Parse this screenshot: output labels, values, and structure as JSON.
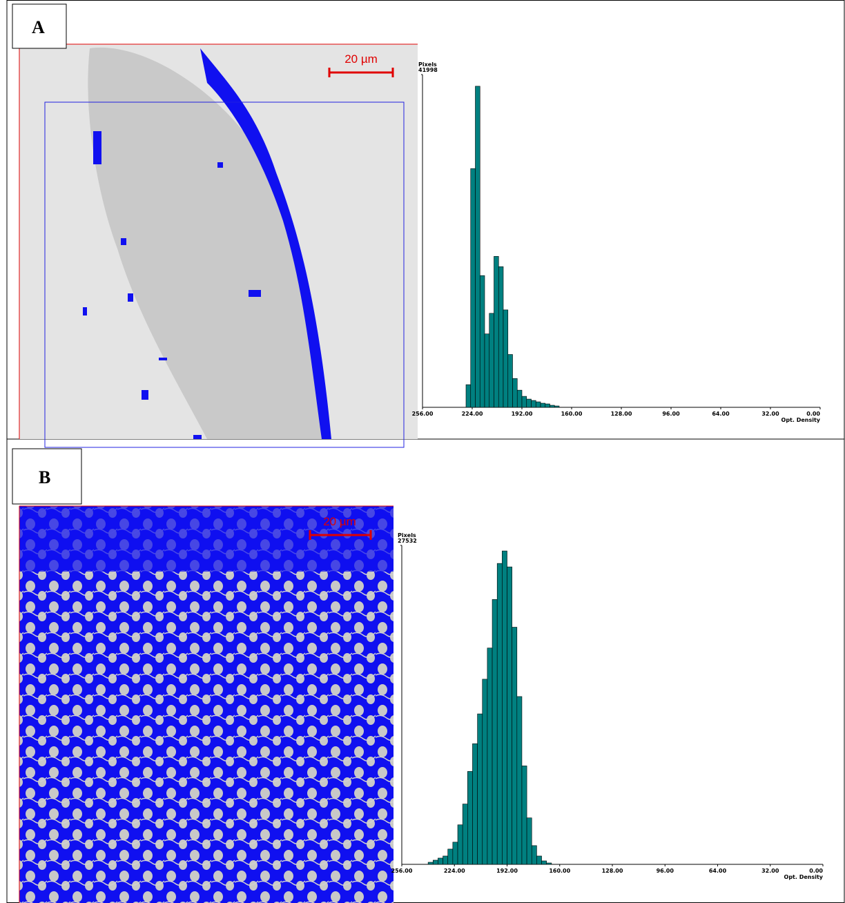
{
  "panels": [
    {
      "label": "A",
      "scale_bar": "20 µm"
    },
    {
      "label": "B",
      "scale_bar": "20 µm"
    }
  ],
  "chart_data": [
    {
      "type": "histogram",
      "y_label": "Pixels",
      "x_label": "Opt. Density",
      "color": "#008080",
      "bins": [
        228,
        225,
        222,
        219,
        216,
        213,
        210,
        207,
        204,
        201,
        198,
        195,
        192,
        189,
        186,
        183,
        180,
        177,
        174,
        171,
        168
      ],
      "values": [
        2858,
        30134,
        40526,
        16626,
        9266,
        11863,
        19051,
        17752,
        12296,
        6668,
        3637,
        2165,
        1386,
        1039,
        866,
        693,
        520,
        433,
        260,
        173
      ],
      "xlim": [
        256,
        0
      ],
      "xticks": [
        {
          "value": 256,
          "label": "256.00"
        },
        {
          "value": 224,
          "label": "224.00"
        },
        {
          "value": 192,
          "label": "192.00"
        },
        {
          "value": 160,
          "label": "160.00"
        },
        {
          "value": 128,
          "label": "128.00"
        },
        {
          "value": 96,
          "label": "96.00"
        },
        {
          "value": 64,
          "label": "64.00"
        },
        {
          "value": 32,
          "label": "32.00"
        },
        {
          "value": 0,
          "label": "0.00"
        }
      ],
      "ylim": [
        0,
        41998
      ],
      "yticks": [
        41998
      ]
    },
    {
      "type": "histogram",
      "y_label": "Pixels",
      "x_label": "Opt. Density",
      "color": "#008080",
      "bins": [
        240,
        237,
        234,
        231,
        228,
        225,
        222,
        219,
        216,
        213,
        210,
        207,
        204,
        201,
        198,
        195,
        192,
        189,
        186,
        183,
        180,
        177,
        174,
        171,
        168,
        165
      ],
      "values": [
        180,
        359,
        539,
        718,
        1317,
        1915,
        3411,
        5207,
        8020,
        10414,
        12987,
        15980,
        18673,
        22862,
        25975,
        27052,
        25676,
        20469,
        14484,
        8499,
        4010,
        1616,
        718,
        299,
        120
      ],
      "xlim": [
        256,
        0
      ],
      "xticks": [
        {
          "value": 256,
          "label": "256.00"
        },
        {
          "value": 224,
          "label": "224.00"
        },
        {
          "value": 192,
          "label": "192.00"
        },
        {
          "value": 160,
          "label": "160.00"
        },
        {
          "value": 128,
          "label": "128.00"
        },
        {
          "value": 96,
          "label": "96.00"
        },
        {
          "value": 64,
          "label": "64.00"
        },
        {
          "value": 32,
          "label": "32.00"
        },
        {
          "value": 0,
          "label": "0.00"
        }
      ],
      "ylim": [
        0,
        27532
      ],
      "yticks": [
        27532
      ]
    }
  ]
}
